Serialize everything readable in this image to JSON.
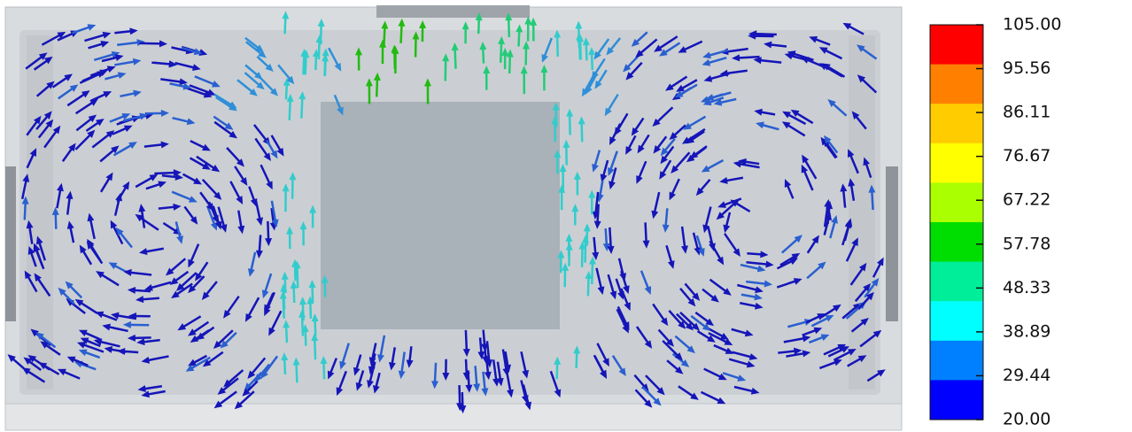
{
  "colorbar": {
    "ticks": [
      {
        "value": 105,
        "label": "105.00"
      },
      {
        "value": 95.56,
        "label": "95.56"
      },
      {
        "value": 86.11,
        "label": "86.11"
      },
      {
        "value": 76.67,
        "label": "76.67"
      },
      {
        "value": 67.22,
        "label": "67.22"
      },
      {
        "value": 57.78,
        "label": "57.78"
      },
      {
        "value": 48.33,
        "label": "48.33"
      },
      {
        "value": 38.89,
        "label": "38.89"
      },
      {
        "value": 29.44,
        "label": "29.44"
      },
      {
        "value": 20,
        "label": "20.00"
      }
    ],
    "colors": [
      "#ff0000",
      "#ff8000",
      "#ffcc00",
      "#ffff00",
      "#aaff00",
      "#00dd00",
      "#00ee99",
      "#00ffff",
      "#0080ff",
      "#0000ff"
    ]
  }
}
